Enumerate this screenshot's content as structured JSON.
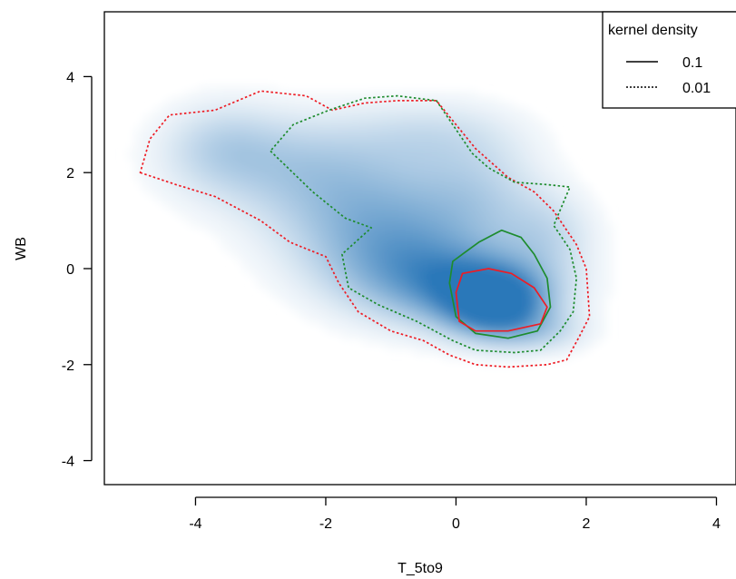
{
  "chart_data": {
    "type": "heatmap",
    "title": "",
    "xlabel": "T_5to9",
    "ylabel": "WB",
    "xlim": [
      -5.4,
      4.3
    ],
    "ylim": [
      -4.5,
      5.35
    ],
    "x_ticks": [
      -4,
      -2,
      0,
      2,
      4
    ],
    "y_ticks": [
      -4,
      -2,
      0,
      2,
      4
    ],
    "x_tick_labels": [
      "-4",
      "-2",
      "0",
      "2",
      "4"
    ],
    "y_tick_labels": [
      "-4",
      "-2",
      "0",
      "2",
      "4"
    ],
    "grid": false,
    "legend": {
      "title": "kernel density",
      "placement": "top-right",
      "entries": [
        {
          "label": "0.1",
          "line_style": "solid"
        },
        {
          "label": "0.01",
          "line_style": "dotted"
        }
      ]
    },
    "heatmap_color": "#2171b5",
    "density_blobs": [
      {
        "x": 0.6,
        "y": -0.75,
        "sx": 0.5,
        "sy": 0.45,
        "w": 1.0
      },
      {
        "x": 0.3,
        "y": -0.4,
        "sx": 0.85,
        "sy": 0.55,
        "w": 0.7
      },
      {
        "x": -0.8,
        "y": 0.1,
        "sx": 0.9,
        "sy": 0.7,
        "w": 0.55
      },
      {
        "x": -1.4,
        "y": 1.2,
        "sx": 1.0,
        "sy": 0.8,
        "w": 0.45
      },
      {
        "x": -2.6,
        "y": 2.2,
        "sx": 1.1,
        "sy": 0.7,
        "w": 0.32
      },
      {
        "x": -3.6,
        "y": 2.6,
        "sx": 0.6,
        "sy": 0.6,
        "w": 0.22
      },
      {
        "x": 0.3,
        "y": 1.5,
        "sx": 0.7,
        "sy": 0.8,
        "w": 0.3
      },
      {
        "x": 1.4,
        "y": 0.7,
        "sx": 0.5,
        "sy": 0.6,
        "w": 0.25
      },
      {
        "x": -0.4,
        "y": 2.8,
        "sx": 0.9,
        "sy": 0.5,
        "w": 0.2
      },
      {
        "x": 1.3,
        "y": -1.3,
        "sx": 0.5,
        "sy": 0.3,
        "w": 0.25
      }
    ],
    "contours": [
      {
        "group": "red",
        "level": "0.01",
        "color": "#ee1c24",
        "line_style": "dotted",
        "points": [
          [
            -4.85,
            2.0
          ],
          [
            -4.3,
            1.75
          ],
          [
            -3.7,
            1.5
          ],
          [
            -3.0,
            1.0
          ],
          [
            -2.55,
            0.55
          ],
          [
            -2.0,
            0.25
          ],
          [
            -1.8,
            -0.3
          ],
          [
            -1.5,
            -0.9
          ],
          [
            -1.0,
            -1.3
          ],
          [
            -0.5,
            -1.5
          ],
          [
            -0.1,
            -1.8
          ],
          [
            0.3,
            -2.0
          ],
          [
            0.8,
            -2.05
          ],
          [
            1.4,
            -2.0
          ],
          [
            1.7,
            -1.9
          ],
          [
            1.9,
            -1.4
          ],
          [
            2.05,
            -1.0
          ],
          [
            2.0,
            0.0
          ],
          [
            1.85,
            0.5
          ],
          [
            1.5,
            1.2
          ],
          [
            1.2,
            1.6
          ],
          [
            0.8,
            1.9
          ],
          [
            0.3,
            2.5
          ],
          [
            -0.3,
            3.5
          ],
          [
            -0.9,
            3.5
          ],
          [
            -1.4,
            3.45
          ],
          [
            -1.9,
            3.3
          ],
          [
            -2.3,
            3.6
          ],
          [
            -3.0,
            3.7
          ],
          [
            -3.7,
            3.3
          ],
          [
            -4.4,
            3.2
          ],
          [
            -4.7,
            2.7
          ],
          [
            -4.85,
            2.0
          ]
        ]
      },
      {
        "group": "green",
        "level": "0.01",
        "color": "#1e8c2e",
        "line_style": "dotted",
        "points": [
          [
            -2.85,
            2.45
          ],
          [
            -2.2,
            1.6
          ],
          [
            -1.7,
            1.05
          ],
          [
            -1.3,
            0.85
          ],
          [
            -1.75,
            0.3
          ],
          [
            -1.65,
            -0.4
          ],
          [
            -1.2,
            -0.75
          ],
          [
            -0.6,
            -1.1
          ],
          [
            -0.05,
            -1.5
          ],
          [
            0.3,
            -1.7
          ],
          [
            0.9,
            -1.75
          ],
          [
            1.3,
            -1.7
          ],
          [
            1.6,
            -1.3
          ],
          [
            1.8,
            -0.9
          ],
          [
            1.85,
            -0.2
          ],
          [
            1.75,
            0.4
          ],
          [
            1.5,
            0.9
          ],
          [
            1.75,
            1.7
          ],
          [
            1.4,
            1.75
          ],
          [
            0.9,
            1.8
          ],
          [
            0.5,
            2.1
          ],
          [
            0.25,
            2.4
          ],
          [
            -0.3,
            3.5
          ],
          [
            -0.9,
            3.6
          ],
          [
            -1.4,
            3.55
          ],
          [
            -1.95,
            3.3
          ],
          [
            -2.5,
            3.0
          ],
          [
            -2.85,
            2.45
          ]
        ]
      },
      {
        "group": "green",
        "level": "0.1",
        "color": "#1e8c2e",
        "line_style": "solid",
        "points": [
          [
            0.1,
            0.3
          ],
          [
            0.35,
            0.55
          ],
          [
            0.7,
            0.8
          ],
          [
            1.0,
            0.65
          ],
          [
            1.2,
            0.3
          ],
          [
            1.4,
            -0.2
          ],
          [
            1.45,
            -0.8
          ],
          [
            1.25,
            -1.3
          ],
          [
            0.8,
            -1.45
          ],
          [
            0.3,
            -1.35
          ],
          [
            0.0,
            -1.0
          ],
          [
            -0.1,
            -0.3
          ],
          [
            -0.05,
            0.15
          ],
          [
            0.1,
            0.3
          ]
        ]
      },
      {
        "group": "red",
        "level": "0.1",
        "color": "#ee1c24",
        "line_style": "solid",
        "points": [
          [
            0.1,
            -0.1
          ],
          [
            0.5,
            0.0
          ],
          [
            0.85,
            -0.1
          ],
          [
            1.2,
            -0.4
          ],
          [
            1.4,
            -0.8
          ],
          [
            1.3,
            -1.15
          ],
          [
            0.8,
            -1.3
          ],
          [
            0.3,
            -1.3
          ],
          [
            0.05,
            -1.1
          ],
          [
            0.0,
            -0.5
          ],
          [
            0.1,
            -0.1
          ]
        ]
      }
    ]
  }
}
